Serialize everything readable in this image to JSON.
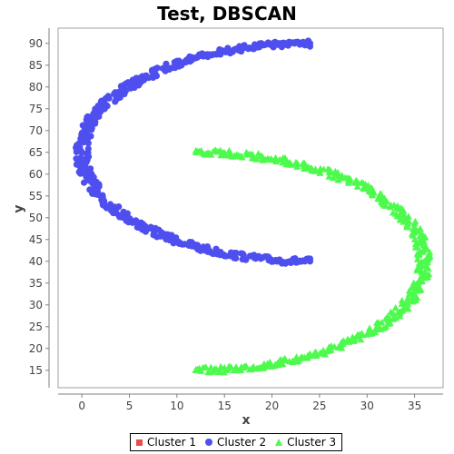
{
  "chart_data": {
    "type": "scatter",
    "title": "Test, DBSCAN",
    "xlabel": "x",
    "ylabel": "y",
    "xlim": [
      -2.5,
      38
    ],
    "ylim": [
      11,
      93.5
    ],
    "xticks": [
      0,
      5,
      10,
      15,
      20,
      25,
      30,
      35
    ],
    "yticks": [
      15,
      20,
      25,
      30,
      35,
      40,
      45,
      50,
      55,
      60,
      65,
      70,
      75,
      80,
      85,
      90
    ],
    "grid": false,
    "legend_position": "bottom-center",
    "series": [
      {
        "name": "Cluster 1",
        "marker": "square",
        "color": "#e84c4c",
        "points": []
      },
      {
        "name": "Cluster 2",
        "marker": "circle",
        "color": "#4f4fef",
        "shape": "arc",
        "center": [
          24,
          65
        ],
        "radius": [
          24,
          25
        ],
        "angle_start_deg": 90,
        "angle_end_deg": 270,
        "endpoints": [
          [
            24,
            90
          ],
          [
            0,
            65
          ],
          [
            24,
            40
          ]
        ]
      },
      {
        "name": "Cluster 3",
        "marker": "triangle",
        "color": "#4dfa4d",
        "shape": "arc",
        "center": [
          12,
          40
        ],
        "radius": [
          24,
          25
        ],
        "angle_start_deg": -90,
        "angle_end_deg": 90,
        "endpoints": [
          [
            12,
            65
          ],
          [
            36,
            40
          ],
          [
            12,
            15
          ]
        ]
      }
    ]
  }
}
